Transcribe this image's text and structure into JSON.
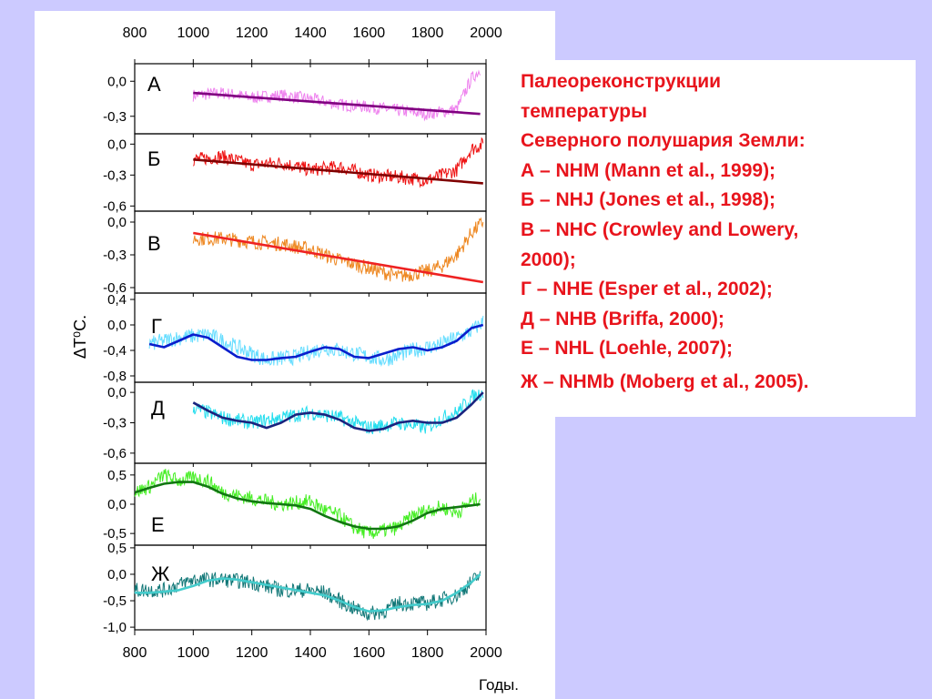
{
  "legend": {
    "lines": [
      "Палеореконструкции",
      "температуры",
      "Северного полушария Земли:",
      "А – NHM (Mann et al., 1999);",
      "Б – NHJ (Jones et al., 1998);",
      "В – NHC (Crowley and Lowery,",
      "2000);",
      "Г – NHE (Esper et al., 2002);",
      "Д – NHB (Briffa, 2000);",
      "Е – NHL (Loehle, 2007);",
      "Ж – NHMb (Moberg et al., 2005)."
    ]
  },
  "colors": {
    "background": "#cccaff",
    "legend_text": "#e8141c"
  },
  "chart_data": {
    "type": "line",
    "xlabel": "Годы.",
    "ylabel": "ΔT⁰C.",
    "xlim": [
      800,
      2000
    ],
    "x_ticks": [
      800,
      1000,
      1200,
      1400,
      1600,
      1800,
      2000
    ],
    "x_tick_labels": [
      "800",
      "1000",
      "1200",
      "1400",
      "1600",
      "1800",
      "2000"
    ],
    "panels": [
      {
        "label": "А",
        "ylim": [
          -0.45,
          0.15
        ],
        "y_ticks": [
          0.0,
          -0.3
        ],
        "y_tick_labels": [
          "0,0",
          "-0,3"
        ],
        "raw": {
          "color": "#ee82ee",
          "x": [
            1000,
            1100,
            1200,
            1300,
            1400,
            1500,
            1600,
            1700,
            1800,
            1850,
            1900,
            1950,
            1980
          ],
          "y": [
            -0.12,
            -0.1,
            -0.14,
            -0.12,
            -0.15,
            -0.2,
            -0.22,
            -0.25,
            -0.28,
            -0.26,
            -0.24,
            0.02,
            0.1
          ]
        },
        "trend": {
          "color": "#800080",
          "x": [
            1000,
            1980
          ],
          "y": [
            -0.1,
            -0.28
          ]
        }
      },
      {
        "label": "Б",
        "ylim": [
          -0.65,
          0.1
        ],
        "y_ticks": [
          0.0,
          -0.3,
          -0.6
        ],
        "y_tick_labels": [
          "0,0",
          "-0,3",
          "-0,6"
        ],
        "raw": {
          "color": "#ee1111",
          "x": [
            1000,
            1100,
            1200,
            1300,
            1400,
            1500,
            1600,
            1700,
            1800,
            1850,
            1900,
            1950,
            1990
          ],
          "y": [
            -0.15,
            -0.12,
            -0.2,
            -0.18,
            -0.25,
            -0.22,
            -0.3,
            -0.32,
            -0.35,
            -0.3,
            -0.25,
            -0.05,
            0.0
          ]
        },
        "trend": {
          "color": "#800000",
          "x": [
            1000,
            1990
          ],
          "y": [
            -0.15,
            -0.38
          ]
        }
      },
      {
        "label": "В",
        "ylim": [
          -0.65,
          0.1
        ],
        "y_ticks": [
          0.0,
          -0.3,
          -0.6
        ],
        "y_tick_labels": [
          "0,0",
          "-0,3",
          "-0,6"
        ],
        "raw": {
          "color": "#ee8822",
          "x": [
            1000,
            1100,
            1200,
            1300,
            1400,
            1500,
            1600,
            1700,
            1800,
            1850,
            1900,
            1950,
            1990
          ],
          "y": [
            -0.15,
            -0.15,
            -0.18,
            -0.2,
            -0.25,
            -0.35,
            -0.42,
            -0.5,
            -0.45,
            -0.4,
            -0.3,
            -0.1,
            0.0
          ]
        },
        "trend": {
          "color": "#ee2222",
          "x": [
            1000,
            1990
          ],
          "y": [
            -0.1,
            -0.55
          ]
        }
      },
      {
        "label": "Г",
        "ylim": [
          -0.9,
          0.5
        ],
        "y_ticks": [
          0.4,
          0.0,
          -0.4,
          -0.8
        ],
        "y_tick_labels": [
          "0,4",
          "0,0",
          "-0,4",
          "-0,8"
        ],
        "raw": {
          "color": "#66ddff",
          "x": [
            850,
            950,
            1050,
            1150,
            1250,
            1350,
            1450,
            1550,
            1650,
            1750,
            1850,
            1950,
            1990
          ],
          "y": [
            -0.3,
            -0.2,
            -0.15,
            -0.35,
            -0.55,
            -0.5,
            -0.35,
            -0.45,
            -0.55,
            -0.4,
            -0.3,
            -0.1,
            0.05
          ]
        },
        "trend": {
          "color": "#0a1ecc",
          "x": [
            850,
            900,
            950,
            1000,
            1050,
            1100,
            1150,
            1200,
            1250,
            1300,
            1350,
            1400,
            1450,
            1500,
            1550,
            1600,
            1650,
            1700,
            1750,
            1800,
            1850,
            1900,
            1950,
            1990
          ],
          "y": [
            -0.3,
            -0.35,
            -0.25,
            -0.15,
            -0.2,
            -0.35,
            -0.5,
            -0.55,
            -0.55,
            -0.52,
            -0.5,
            -0.42,
            -0.35,
            -0.38,
            -0.5,
            -0.52,
            -0.45,
            -0.38,
            -0.35,
            -0.4,
            -0.35,
            -0.25,
            -0.05,
            0.0
          ]
        }
      },
      {
        "label": "Д",
        "ylim": [
          -0.7,
          0.1
        ],
        "y_ticks": [
          0.0,
          -0.3,
          -0.6
        ],
        "y_tick_labels": [
          "0,0",
          "-0,3",
          "-0,6"
        ],
        "raw": {
          "color": "#22ddee",
          "x": [
            1000,
            1100,
            1200,
            1300,
            1400,
            1500,
            1600,
            1700,
            1800,
            1850,
            1900,
            1950,
            1990
          ],
          "y": [
            -0.15,
            -0.25,
            -0.3,
            -0.25,
            -0.2,
            -0.25,
            -0.35,
            -0.3,
            -0.35,
            -0.25,
            -0.2,
            -0.05,
            0.0
          ]
        },
        "trend": {
          "color": "#1a237e",
          "x": [
            1000,
            1050,
            1100,
            1150,
            1200,
            1250,
            1300,
            1350,
            1400,
            1450,
            1500,
            1550,
            1600,
            1650,
            1700,
            1750,
            1800,
            1850,
            1900,
            1950,
            1990
          ],
          "y": [
            -0.1,
            -0.18,
            -0.25,
            -0.28,
            -0.3,
            -0.35,
            -0.3,
            -0.22,
            -0.2,
            -0.22,
            -0.27,
            -0.35,
            -0.38,
            -0.36,
            -0.3,
            -0.28,
            -0.3,
            -0.3,
            -0.25,
            -0.12,
            0.0
          ]
        }
      },
      {
        "label": "Е",
        "ylim": [
          -0.7,
          0.7
        ],
        "y_ticks": [
          0.5,
          0.0,
          -0.5
        ],
        "y_tick_labels": [
          "0,5",
          "0,0",
          "-0,5"
        ],
        "raw": {
          "color": "#44ee22",
          "x": [
            800,
            850,
            900,
            950,
            1000,
            1050,
            1100,
            1200,
            1300,
            1400,
            1450,
            1500,
            1550,
            1600,
            1650,
            1700,
            1750,
            1800,
            1850,
            1900,
            1950,
            1980
          ],
          "y": [
            0.2,
            0.3,
            0.5,
            0.4,
            0.45,
            0.4,
            0.2,
            0.1,
            0.0,
            0.05,
            -0.1,
            -0.2,
            -0.4,
            -0.5,
            -0.45,
            -0.4,
            -0.2,
            -0.1,
            -0.05,
            -0.15,
            0.05,
            0.1
          ]
        },
        "trend": {
          "color": "#117711",
          "x": [
            800,
            850,
            900,
            950,
            1000,
            1050,
            1100,
            1150,
            1200,
            1250,
            1300,
            1350,
            1400,
            1450,
            1500,
            1550,
            1600,
            1650,
            1700,
            1750,
            1800,
            1850,
            1900,
            1950,
            1980
          ],
          "y": [
            0.2,
            0.28,
            0.35,
            0.38,
            0.38,
            0.3,
            0.18,
            0.1,
            0.05,
            0.02,
            0.0,
            -0.02,
            -0.08,
            -0.2,
            -0.3,
            -0.38,
            -0.42,
            -0.42,
            -0.38,
            -0.28,
            -0.15,
            -0.08,
            -0.05,
            -0.02,
            0.0
          ]
        }
      },
      {
        "label": "Ж",
        "ylim": [
          -1.05,
          0.55
        ],
        "y_ticks": [
          0.5,
          0.0,
          -0.5,
          -1.0
        ],
        "y_tick_labels": [
          "0,5",
          "0,0",
          "-0,5",
          "-1,0"
        ],
        "raw": {
          "color": "#117777",
          "x": [
            800,
            900,
            1000,
            1100,
            1200,
            1300,
            1400,
            1450,
            1500,
            1550,
            1600,
            1650,
            1700,
            1800,
            1900,
            1950,
            1980
          ],
          "y": [
            -0.3,
            -0.3,
            -0.1,
            -0.1,
            -0.15,
            -0.3,
            -0.3,
            -0.35,
            -0.5,
            -0.65,
            -0.75,
            -0.7,
            -0.55,
            -0.55,
            -0.4,
            -0.15,
            0.0
          ]
        },
        "trend": {
          "color": "#44cccc",
          "x": [
            800,
            850,
            900,
            950,
            1000,
            1050,
            1100,
            1150,
            1200,
            1250,
            1300,
            1350,
            1400,
            1450,
            1500,
            1550,
            1600,
            1650,
            1700,
            1750,
            1800,
            1850,
            1900,
            1950,
            1980
          ],
          "y": [
            -0.35,
            -0.35,
            -0.33,
            -0.3,
            -0.22,
            -0.12,
            -0.08,
            -0.1,
            -0.15,
            -0.2,
            -0.25,
            -0.3,
            -0.35,
            -0.4,
            -0.5,
            -0.62,
            -0.7,
            -0.68,
            -0.62,
            -0.58,
            -0.56,
            -0.5,
            -0.35,
            -0.15,
            0.0
          ]
        }
      }
    ]
  }
}
